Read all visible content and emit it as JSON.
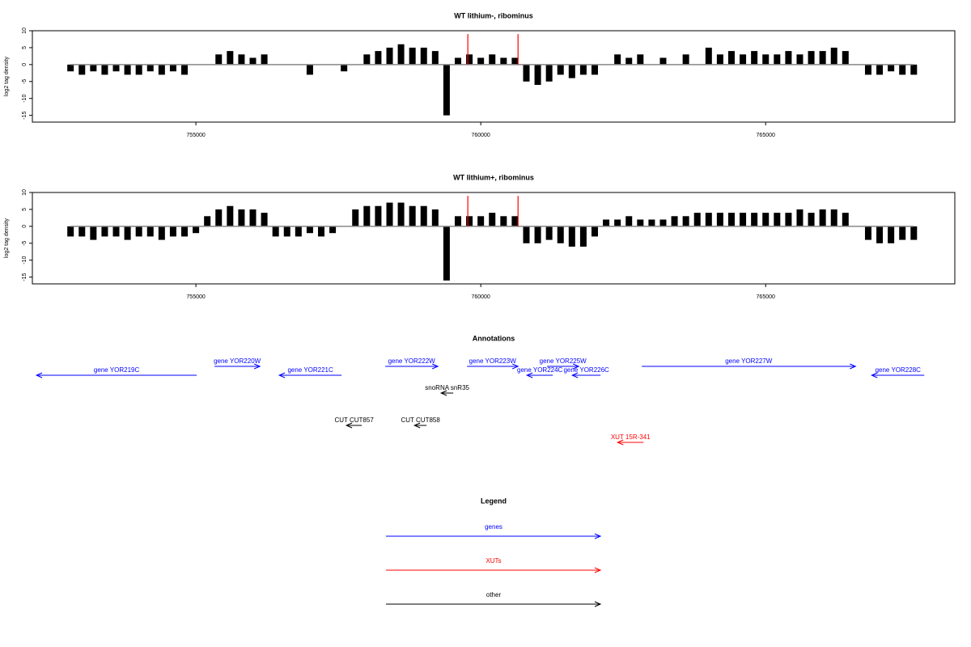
{
  "chart_data": [
    {
      "type": "bar",
      "title": "WT lithium-, ribominus",
      "y_label": "log2 tag density",
      "color": "#000000",
      "x": [
        752800,
        753000,
        753200,
        753400,
        753600,
        753800,
        754000,
        754200,
        754400,
        754600,
        754800,
        755000,
        755200,
        755400,
        755600,
        755800,
        756000,
        756200,
        756400,
        756600,
        756800,
        757000,
        757200,
        757400,
        757600,
        757800,
        758000,
        758200,
        758400,
        758600,
        758800,
        759000,
        759200,
        759400,
        759600,
        759800,
        760000,
        760200,
        760400,
        760600,
        760800,
        761000,
        761200,
        761400,
        761600,
        761800,
        762000,
        762200,
        762400,
        762600,
        762800,
        763000,
        763200,
        763400,
        763600,
        763800,
        764000,
        764200,
        764400,
        764600,
        764800,
        765000,
        765200,
        765400,
        765600,
        765800,
        766000,
        766200,
        766400,
        766600,
        766800,
        767000,
        767200,
        767400,
        767600
      ],
      "values": [
        -2,
        -3,
        -2,
        -3,
        -2,
        -3,
        -3,
        -2,
        -3,
        -2,
        -3,
        0,
        0,
        3,
        4,
        3,
        2,
        3,
        0,
        0,
        0,
        -3,
        0,
        0,
        -2,
        0,
        3,
        4,
        5,
        6,
        5,
        5,
        4,
        -15,
        2,
        3,
        2,
        3,
        2,
        2,
        -5,
        -6,
        -5,
        -3,
        -4,
        -3,
        -3,
        0,
        3,
        2,
        3,
        0,
        2,
        0,
        3,
        0,
        5,
        3,
        4,
        3,
        4,
        3,
        3,
        4,
        3,
        4,
        4,
        5,
        4,
        0,
        -3,
        -3,
        -2,
        -3,
        -3
      ],
      "highlight": {
        "color": "#ff0000",
        "x": [
          759773,
          760654
        ],
        "values": [
          9,
          9
        ]
      },
      "xlim": [
        752130,
        768320
      ],
      "ylim": [
        -17,
        10
      ],
      "xticks": [
        755000,
        760000,
        765000
      ],
      "yticks": [
        10,
        5,
        0,
        -5,
        -10,
        -15
      ]
    },
    {
      "type": "bar",
      "title": "WT lithium+, ribominus",
      "y_label": "log2 tag density",
      "color": "#000000",
      "x": [
        752800,
        753000,
        753200,
        753400,
        753600,
        753800,
        754000,
        754200,
        754400,
        754600,
        754800,
        755000,
        755200,
        755400,
        755600,
        755800,
        756000,
        756200,
        756400,
        756600,
        756800,
        757000,
        757200,
        757400,
        757600,
        757800,
        758000,
        758200,
        758400,
        758600,
        758800,
        759000,
        759200,
        759400,
        759600,
        759800,
        760000,
        760200,
        760400,
        760600,
        760800,
        761000,
        761200,
        761400,
        761600,
        761800,
        762000,
        762200,
        762400,
        762600,
        762800,
        763000,
        763200,
        763400,
        763600,
        763800,
        764000,
        764200,
        764400,
        764600,
        764800,
        765000,
        765200,
        765400,
        765600,
        765800,
        766000,
        766200,
        766400,
        766600,
        766800,
        767000,
        767200,
        767400,
        767600
      ],
      "values": [
        -3,
        -3,
        -4,
        -3,
        -3,
        -4,
        -3,
        -3,
        -4,
        -3,
        -3,
        -2,
        3,
        5,
        6,
        5,
        5,
        4,
        -3,
        -3,
        -3,
        -2,
        -3,
        -2,
        0,
        5,
        6,
        6,
        7,
        7,
        6,
        6,
        5,
        -16,
        3,
        3,
        3,
        4,
        3,
        3,
        -5,
        -5,
        -4,
        -5,
        -6,
        -6,
        -3,
        2,
        2,
        3,
        2,
        2,
        2,
        3,
        3,
        4,
        4,
        4,
        4,
        4,
        4,
        4,
        4,
        4,
        5,
        4,
        5,
        5,
        4,
        0,
        -4,
        -5,
        -5,
        -4,
        -4
      ],
      "highlight": {
        "color": "#ff0000",
        "x": [
          759773,
          760654
        ],
        "values": [
          9,
          9
        ]
      },
      "xlim": [
        752130,
        768320
      ],
      "ylim": [
        -17,
        10
      ],
      "xticks": [
        755000,
        760000,
        765000
      ],
      "yticks": [
        10,
        5,
        0,
        -5,
        -10,
        -15
      ]
    },
    {
      "type": "arrows",
      "title": "Annotations",
      "xlim": [
        752130,
        768320
      ],
      "features": [
        {
          "label": "gene YOR219C",
          "start": 755015,
          "end": 752202,
          "color": "#0000ff"
        },
        {
          "label": "gene YOR220W",
          "start": 755327,
          "end": 756123,
          "color": "#0000ff"
        },
        {
          "label": "gene YOR221C",
          "start": 757557,
          "end": 756463,
          "color": "#0000ff"
        },
        {
          "label": "gene YOR222W",
          "start": 758324,
          "end": 759247,
          "color": "#0000ff"
        },
        {
          "label": "gene YOR223W",
          "start": 759759,
          "end": 760654,
          "color": "#0000ff"
        },
        {
          "label": "gene YOR224C",
          "start": 761264,
          "end": 760810,
          "color": "#0000ff"
        },
        {
          "label": "gene YOR225W",
          "start": 761165,
          "end": 761719,
          "color": "#0000ff"
        },
        {
          "label": "gene YOR226C",
          "start": 762102,
          "end": 761605,
          "color": "#0000ff"
        },
        {
          "label": "gene YOR227W",
          "start": 762827,
          "end": 766577,
          "color": "#0000ff"
        },
        {
          "label": "gene YOR228C",
          "start": 767784,
          "end": 766861,
          "color": "#0000ff"
        },
        {
          "label": "snoRNA snR35",
          "start": 759517,
          "end": 759304,
          "color": "#000000"
        },
        {
          "label": "CUT CUT857",
          "start": 757912,
          "end": 757642,
          "color": "#000000"
        },
        {
          "label": "CUT CUT858",
          "start": 759048,
          "end": 758836,
          "color": "#000000"
        },
        {
          "label": "XUT 15R-341",
          "start": 762856,
          "end": 762401,
          "color": "#ff0000"
        }
      ],
      "legend": {
        "title": "Legend",
        "items": [
          {
            "label": "genes",
            "color": "#0000ff"
          },
          {
            "label": "XUTs",
            "color": "#ff0000"
          },
          {
            "label": "other",
            "color": "#000000"
          }
        ]
      }
    }
  ]
}
